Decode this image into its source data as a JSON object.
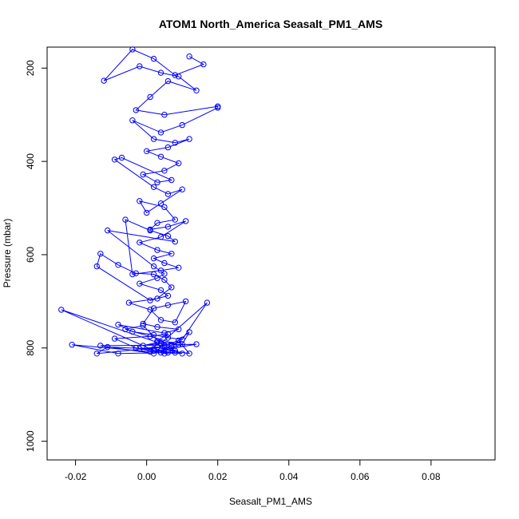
{
  "chart_data": {
    "type": "scatter",
    "title": "ATOM1 North_America Seasalt_PM1_AMS",
    "xlabel": "Seasalt_PM1_AMS",
    "ylabel": "Pressure (mbar)",
    "xlim": [
      -0.028,
      0.098
    ],
    "ylim": [
      1040,
      155
    ],
    "y_reversed": true,
    "x_ticks": [
      -0.02,
      0.0,
      0.02,
      0.04,
      0.06,
      0.08
    ],
    "x_tick_labels": [
      "-0.02",
      "0.00",
      "0.02",
      "0.04",
      "0.06",
      "0.08"
    ],
    "y_ticks": [
      200,
      400,
      600,
      800,
      1000
    ],
    "y_tick_labels": [
      "200",
      "400",
      "600",
      "800",
      "1000"
    ],
    "grid": false,
    "legend": "none",
    "colors": {
      "series": "#0000ff",
      "axis": "#000000"
    },
    "marker": "open-circle",
    "connected": true,
    "series": [
      {
        "x": [
          0.012,
          0.016,
          0.008,
          0.002,
          -0.004,
          -0.012,
          -0.002,
          0.004,
          0.009,
          0.014,
          0.006,
          0.001,
          -0.003,
          0.005,
          0.02,
          0.02,
          0.01,
          0.004,
          -0.004,
          0.002,
          0.008,
          0.012,
          0.006,
          0.0,
          0.004,
          0.009,
          0.005,
          -0.001,
          0.003,
          0.007,
          -0.007,
          -0.009,
          0.002,
          0.006,
          0.01,
          0.004,
          0.0,
          -0.002,
          0.005,
          0.008,
          0.003,
          0.001,
          0.006,
          0.011,
          0.004,
          -0.002,
          0.003,
          0.007,
          0.002,
          0.005,
          0.009,
          0.004,
          -0.004,
          -0.006,
          0.001,
          0.006,
          0.008,
          -0.011,
          0.002,
          0.005,
          0.003,
          -0.002,
          0.004,
          0.006,
          0.001,
          -0.014,
          -0.013,
          -0.008,
          -0.003,
          0.002,
          0.005,
          0.007,
          0.003,
          -0.005,
          0.001,
          0.004,
          0.008,
          0.011,
          0.006,
          0.002,
          -0.001,
          0.003,
          0.009,
          0.005,
          -0.008,
          -0.004,
          0.002,
          0.006,
          0.01,
          0.017,
          0.004,
          -0.001,
          0.003,
          -0.024,
          0.002,
          0.008,
          0.005,
          -0.003,
          -0.009,
          0.001,
          0.006,
          0.003,
          0.009,
          -0.006,
          -0.001,
          0.004,
          0.007,
          0.012,
          0.01,
          0.002,
          -0.013,
          0.005,
          0.008,
          0.003,
          -0.002,
          0.006,
          -0.008,
          -0.021,
          0.001,
          0.014,
          0.007,
          0.004,
          0.01,
          0.003,
          -0.014,
          -0.011,
          0.002,
          0.005,
          0.009,
          0.012,
          0.006,
          0.004
        ],
        "y": [
          175,
          192,
          215,
          180,
          160,
          227,
          196,
          210,
          218,
          248,
          228,
          262,
          290,
          300,
          282,
          285,
          322,
          338,
          312,
          352,
          360,
          352,
          370,
          378,
          390,
          404,
          420,
          428,
          445,
          440,
          392,
          396,
          455,
          470,
          460,
          490,
          510,
          485,
          498,
          525,
          532,
          546,
          540,
          528,
          562,
          574,
          590,
          598,
          608,
          618,
          628,
          634,
          642,
          525,
          548,
          560,
          572,
          548,
          625,
          641,
          650,
          662,
          676,
          688,
          698,
          625,
          598,
          622,
          640,
          642,
          654,
          670,
          694,
          703,
          718,
          740,
          745,
          700,
          708,
          715,
          748,
          755,
          760,
          768,
          750,
          765,
          772,
          778,
          782,
          703,
          790,
          795,
          788,
          718,
          805,
          810,
          812,
          800,
          780,
          775,
          770,
          785,
          793,
          760,
          752,
          790,
          796,
          766,
          792,
          812,
          795,
          794,
          806,
          798,
          802,
          810,
          812,
          793,
          808,
          792,
          793,
          810,
          812,
          799,
          812,
          798,
          802,
          795,
          784,
          812,
          805,
          790
        ]
      }
    ]
  }
}
